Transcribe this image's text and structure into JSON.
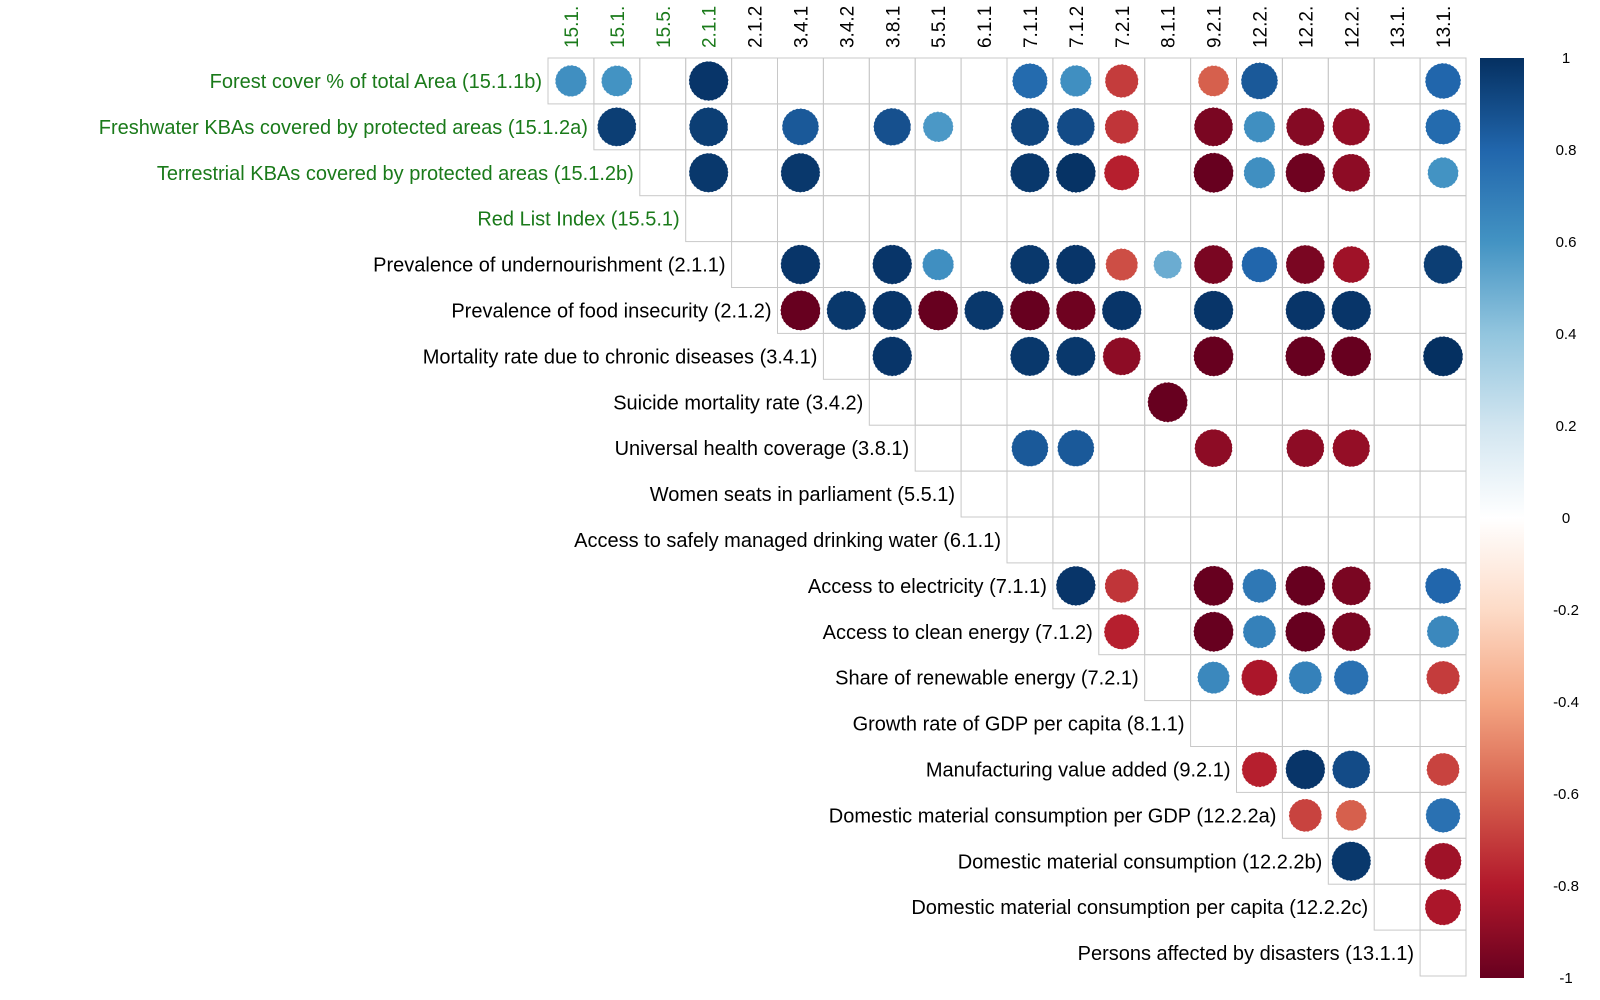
{
  "chart_data": {
    "type": "heatmap",
    "style": "upper-triangle correlation plot with circles",
    "row_labels": [
      "Forest cover % of total Area (15.1.1b)",
      "Freshwater KBAs covered by protected areas (15.1.2a)",
      "Terrestrial KBAs covered by protected areas (15.1.2b)",
      "Red List Index (15.5.1)",
      "Prevalence of undernourishment (2.1.1)",
      "Prevalence of food insecurity (2.1.2)",
      "Mortality rate due to chronic diseases (3.4.1)",
      "Suicide mortality rate (3.4.2)",
      "Universal health coverage (3.8.1)",
      "Women seats in parliament (5.5.1)",
      "Access to safely managed drinking water (6.1.1)",
      "Access to electricity (7.1.1)",
      "Access to clean energy (7.1.2)",
      "Share of renewable energy (7.2.1)",
      "Growth rate of GDP per capita (8.1.1)",
      "Manufacturing value added (9.2.1)",
      "Domestic material consumption per GDP (12.2.2a)",
      "Domestic material consumption (12.2.2b)",
      "Domestic material consumption per capita (12.2.2c)",
      "Persons affected by disasters (13.1.1)"
    ],
    "col_labels": [
      "15.1.",
      "15.1.",
      "15.5.",
      "2.1.1",
      "2.1.2",
      "3.4.1",
      "3.4.2",
      "3.8.1",
      "5.5.1",
      "6.1.1",
      "7.1.1",
      "7.1.2",
      "7.2.1",
      "8.1.1",
      "9.2.1",
      "12.2.",
      "12.2.",
      "12.2.",
      "13.1.",
      "13.1."
    ],
    "green_count": 4,
    "colorbar_ticks": [
      "1",
      "0.8",
      "0.6",
      "0.4",
      "0.2",
      "0",
      "-0.2",
      "-0.4",
      "-0.6",
      "-0.8",
      "-1"
    ],
    "color_low": "#67001f",
    "color_mid": "#ffffff",
    "color_high": "#053061",
    "label_color_green": "#1a7a1a",
    "cells": [
      [
        0,
        0,
        0.62
      ],
      [
        0,
        1,
        0.6
      ],
      [
        0,
        3,
        0.98
      ],
      [
        0,
        10,
        0.78
      ],
      [
        0,
        11,
        0.62
      ],
      [
        0,
        12,
        -0.7
      ],
      [
        0,
        14,
        -0.6
      ],
      [
        0,
        15,
        0.85
      ],
      [
        0,
        19,
        0.8
      ],
      [
        1,
        1,
        0.95
      ],
      [
        1,
        3,
        0.95
      ],
      [
        1,
        5,
        0.85
      ],
      [
        1,
        7,
        0.88
      ],
      [
        1,
        8,
        0.58
      ],
      [
        1,
        10,
        0.92
      ],
      [
        1,
        11,
        0.9
      ],
      [
        1,
        12,
        -0.72
      ],
      [
        1,
        14,
        -0.95
      ],
      [
        1,
        15,
        0.62
      ],
      [
        1,
        16,
        -0.92
      ],
      [
        1,
        17,
        -0.88
      ],
      [
        1,
        19,
        0.78
      ],
      [
        2,
        3,
        0.97
      ],
      [
        2,
        5,
        0.97
      ],
      [
        2,
        10,
        0.97
      ],
      [
        2,
        11,
        0.99
      ],
      [
        2,
        12,
        -0.78
      ],
      [
        2,
        14,
        -1.0
      ],
      [
        2,
        15,
        0.62
      ],
      [
        2,
        16,
        -0.98
      ],
      [
        2,
        17,
        -0.9
      ],
      [
        2,
        19,
        0.6
      ],
      [
        4,
        5,
        0.98
      ],
      [
        4,
        7,
        0.98
      ],
      [
        4,
        8,
        0.62
      ],
      [
        4,
        10,
        0.97
      ],
      [
        4,
        11,
        0.98
      ],
      [
        4,
        12,
        -0.65
      ],
      [
        4,
        13,
        0.5
      ],
      [
        4,
        14,
        -0.95
      ],
      [
        4,
        15,
        0.8
      ],
      [
        4,
        16,
        -0.95
      ],
      [
        4,
        17,
        -0.85
      ],
      [
        4,
        19,
        0.95
      ],
      [
        5,
        5,
        -1.0
      ],
      [
        5,
        6,
        0.97
      ],
      [
        5,
        7,
        0.98
      ],
      [
        5,
        8,
        -1.0
      ],
      [
        5,
        9,
        0.97
      ],
      [
        5,
        10,
        -1.0
      ],
      [
        5,
        11,
        -0.98
      ],
      [
        5,
        12,
        0.98
      ],
      [
        5,
        14,
        0.98
      ],
      [
        5,
        16,
        0.98
      ],
      [
        5,
        17,
        0.98
      ],
      [
        6,
        7,
        0.98
      ],
      [
        6,
        10,
        0.97
      ],
      [
        6,
        11,
        0.97
      ],
      [
        6,
        12,
        -0.9
      ],
      [
        6,
        14,
        -1.0
      ],
      [
        6,
        16,
        -1.0
      ],
      [
        6,
        17,
        -1.0
      ],
      [
        6,
        19,
        1.0
      ],
      [
        7,
        13,
        -1.0
      ],
      [
        8,
        10,
        0.85
      ],
      [
        8,
        11,
        0.85
      ],
      [
        8,
        14,
        -0.9
      ],
      [
        8,
        16,
        -0.9
      ],
      [
        8,
        17,
        -0.88
      ],
      [
        11,
        11,
        0.98
      ],
      [
        11,
        12,
        -0.72
      ],
      [
        11,
        14,
        -1.0
      ],
      [
        11,
        15,
        0.72
      ],
      [
        11,
        16,
        -1.0
      ],
      [
        11,
        17,
        -0.95
      ],
      [
        11,
        19,
        0.8
      ],
      [
        12,
        12,
        -0.78
      ],
      [
        12,
        14,
        -1.0
      ],
      [
        12,
        15,
        0.68
      ],
      [
        12,
        16,
        -1.0
      ],
      [
        12,
        17,
        -0.95
      ],
      [
        12,
        19,
        0.65
      ],
      [
        13,
        14,
        0.65
      ],
      [
        13,
        15,
        -0.82
      ],
      [
        13,
        16,
        0.68
      ],
      [
        13,
        17,
        0.75
      ],
      [
        13,
        19,
        -0.7
      ],
      [
        15,
        15,
        -0.78
      ],
      [
        15,
        16,
        0.98
      ],
      [
        15,
        17,
        0.9
      ],
      [
        15,
        19,
        -0.68
      ],
      [
        16,
        16,
        -0.68
      ],
      [
        16,
        17,
        -0.6
      ],
      [
        16,
        19,
        0.75
      ],
      [
        17,
        17,
        0.97
      ],
      [
        17,
        19,
        -0.85
      ],
      [
        18,
        19,
        -0.82
      ]
    ]
  }
}
